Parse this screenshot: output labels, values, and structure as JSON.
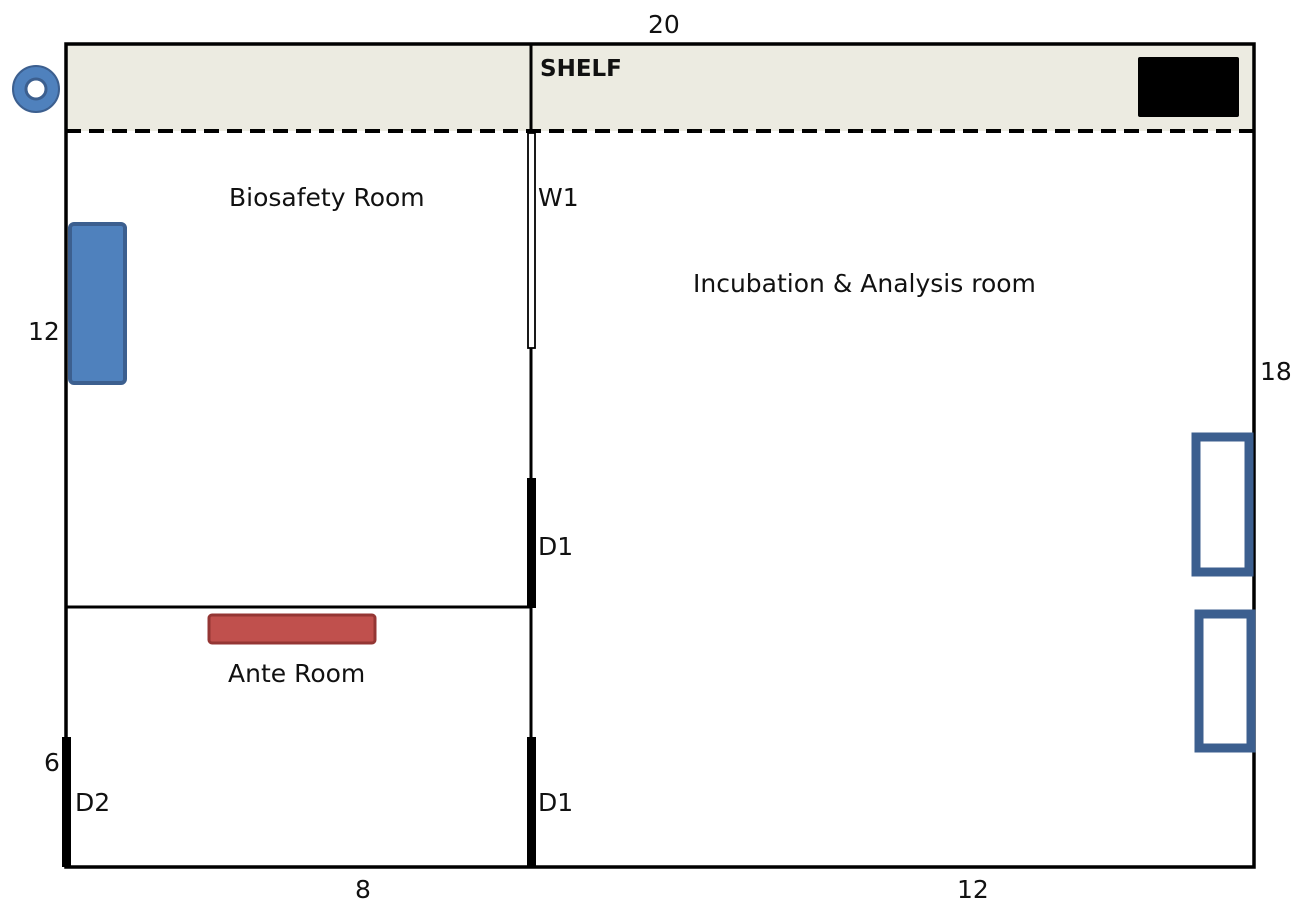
{
  "dimensions": {
    "top": "20",
    "left_upper": "12",
    "left_lower": "6",
    "right": "18",
    "bottom_left": "8",
    "bottom_right": "12"
  },
  "rooms": {
    "shelf": "SHELF",
    "biosafety": "Biosafety Room",
    "incubation": "Incubation & Analysis room",
    "ante": "Ante Room"
  },
  "openings": {
    "window": "W1",
    "door_upper": "D1",
    "door_lower": "D1",
    "door_entry": "D2"
  },
  "colors": {
    "wall": "#000000",
    "shelf_fill": "#ecebe1",
    "cabinet_blue": "#4f81bd",
    "outline_blue": "#3c5f8f",
    "bench_red": "#c0504d"
  }
}
